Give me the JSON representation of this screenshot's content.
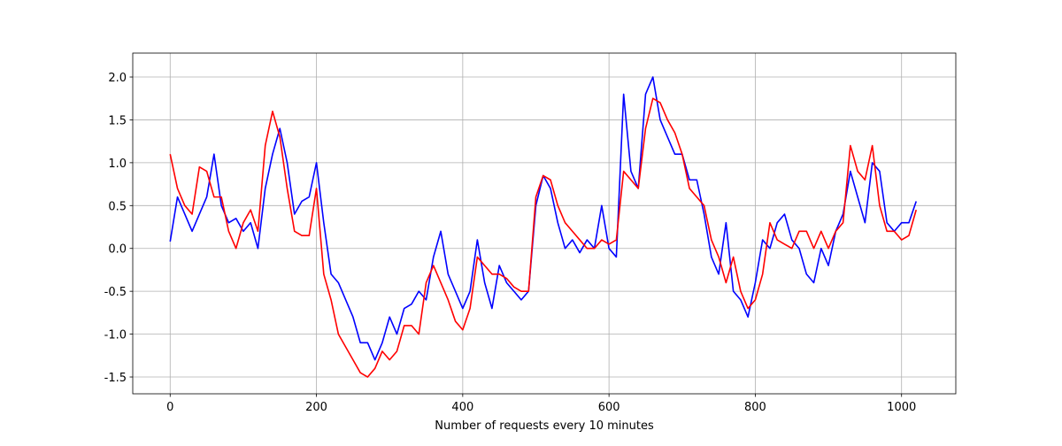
{
  "chart_data": {
    "type": "line",
    "xlabel": "Number of requests every 10 minutes",
    "x": [
      0,
      10,
      20,
      30,
      40,
      50,
      60,
      70,
      80,
      90,
      100,
      110,
      120,
      130,
      140,
      150,
      160,
      170,
      180,
      190,
      200,
      210,
      220,
      230,
      240,
      250,
      260,
      270,
      280,
      290,
      300,
      310,
      320,
      330,
      340,
      350,
      360,
      370,
      380,
      390,
      400,
      410,
      420,
      430,
      440,
      450,
      460,
      470,
      480,
      490,
      500,
      510,
      520,
      530,
      540,
      550,
      560,
      570,
      580,
      590,
      600,
      610,
      620,
      630,
      640,
      650,
      660,
      670,
      680,
      690,
      700,
      710,
      720,
      730,
      740,
      750,
      760,
      770,
      780,
      790,
      800,
      810,
      820,
      830,
      840,
      850,
      860,
      870,
      880,
      890,
      900,
      910,
      920,
      930,
      940,
      950,
      960,
      970,
      980,
      990,
      1000,
      1010,
      1020
    ],
    "series": [
      {
        "color": "#0000ff",
        "values": [
          0.08,
          0.6,
          0.4,
          0.2,
          0.4,
          0.6,
          1.1,
          0.5,
          0.3,
          0.35,
          0.2,
          0.3,
          0.0,
          0.7,
          1.1,
          1.4,
          1.0,
          0.4,
          0.55,
          0.6,
          1.0,
          0.3,
          -0.3,
          -0.4,
          -0.6,
          -0.8,
          -1.1,
          -1.1,
          -1.3,
          -1.1,
          -0.8,
          -1.0,
          -0.7,
          -0.65,
          -0.5,
          -0.6,
          -0.1,
          0.2,
          -0.3,
          -0.5,
          -0.7,
          -0.5,
          0.1,
          -0.4,
          -0.7,
          -0.2,
          -0.4,
          -0.5,
          -0.6,
          -0.5,
          0.5,
          0.85,
          0.7,
          0.3,
          0.0,
          0.1,
          -0.05,
          0.1,
          0.0,
          0.5,
          0.0,
          -0.1,
          1.8,
          0.9,
          0.7,
          1.8,
          2.0,
          1.5,
          1.3,
          1.1,
          1.1,
          0.8,
          0.8,
          0.4,
          -0.1,
          -0.3,
          0.3,
          -0.5,
          -0.6,
          -0.8,
          -0.4,
          0.1,
          0.0,
          0.3,
          0.4,
          0.1,
          0.0,
          -0.3,
          -0.4,
          0.0,
          -0.2,
          0.2,
          0.4,
          0.9,
          0.6,
          0.3,
          1.0,
          0.9,
          0.3,
          0.2,
          0.3,
          0.3,
          0.55
        ]
      },
      {
        "color": "#ff0000",
        "values": [
          1.1,
          0.7,
          0.5,
          0.4,
          0.95,
          0.9,
          0.6,
          0.6,
          0.2,
          0.0,
          0.3,
          0.45,
          0.2,
          1.2,
          1.6,
          1.3,
          0.7,
          0.2,
          0.15,
          0.15,
          0.7,
          -0.3,
          -0.6,
          -1.0,
          -1.15,
          -1.3,
          -1.45,
          -1.5,
          -1.4,
          -1.2,
          -1.3,
          -1.2,
          -0.9,
          -0.9,
          -1.0,
          -0.4,
          -0.2,
          -0.4,
          -0.6,
          -0.85,
          -0.95,
          -0.7,
          -0.1,
          -0.2,
          -0.3,
          -0.3,
          -0.35,
          -0.45,
          -0.5,
          -0.5,
          0.6,
          0.85,
          0.8,
          0.5,
          0.3,
          0.2,
          0.1,
          0.0,
          0.0,
          0.1,
          0.05,
          0.1,
          0.9,
          0.8,
          0.7,
          1.4,
          1.75,
          1.7,
          1.5,
          1.35,
          1.1,
          0.7,
          0.6,
          0.5,
          0.1,
          -0.1,
          -0.4,
          -0.1,
          -0.5,
          -0.7,
          -0.6,
          -0.3,
          0.3,
          0.1,
          0.05,
          0.0,
          0.2,
          0.2,
          0.0,
          0.2,
          0.0,
          0.2,
          0.3,
          1.2,
          0.9,
          0.8,
          1.2,
          0.5,
          0.2,
          0.2,
          0.1,
          0.15,
          0.45
        ]
      }
    ],
    "xlim": [
      -51.15,
      1074.15
    ],
    "xticks": [
      0,
      200,
      400,
      600,
      800,
      1000
    ],
    "ylim": [
      -1.696,
      2.279
    ],
    "yticks": [
      -1.5,
      {
        "value": -1,
        "label": "-1.0"
      },
      -0.5,
      {
        "value": 0,
        "label": "0.0"
      },
      0.5,
      {
        "value": 1,
        "label": "1.0"
      },
      1.5,
      {
        "value": 2,
        "label": "2.0"
      }
    ],
    "grid": true
  }
}
